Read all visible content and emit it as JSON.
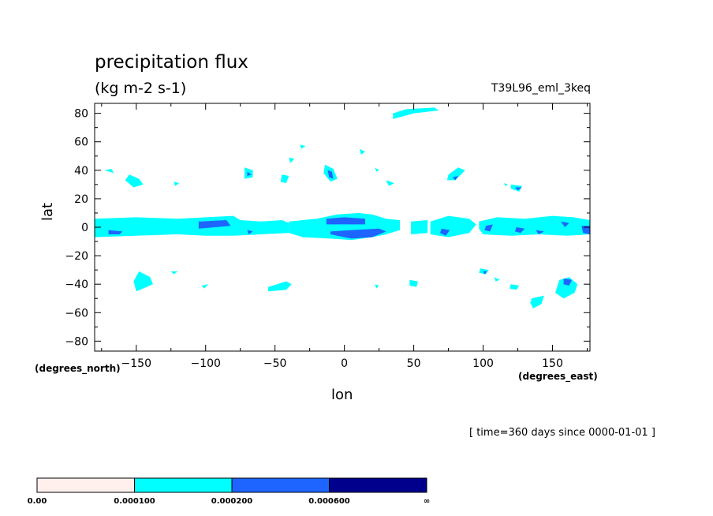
{
  "chart_data": {
    "type": "heatmap",
    "title": "precipitation flux",
    "units": "(kg m-2 s-1)",
    "experiment": "T39L96_eml_3keq",
    "xlabel": "lon",
    "ylabel": "lat",
    "x_units": "(degrees_north)",
    "y_units": "(degrees_east)",
    "time_label": "[ time=360 days since 0000-01-01 ]",
    "xlim": [
      -180,
      177
    ],
    "ylim": [
      -87,
      87
    ],
    "xticks": [
      -150,
      -100,
      -50,
      0,
      50,
      100,
      150
    ],
    "yticks": [
      80,
      60,
      40,
      20,
      0,
      -20,
      -40,
      -60,
      -80
    ],
    "colorbar": {
      "levels": [
        "0.00",
        "0.000100",
        "0.000200",
        "0.000600",
        "∞"
      ],
      "colors": [
        "#fff0ee",
        "#00ffff",
        "#1e64ff",
        "#00008c"
      ]
    },
    "regions": [
      {
        "level": 1,
        "points": [
          [
            -180,
            6
          ],
          [
            -150,
            7
          ],
          [
            -120,
            6
          ],
          [
            -100,
            7
          ],
          [
            -80,
            8
          ],
          [
            -75,
            5
          ],
          [
            -60,
            4
          ],
          [
            -45,
            5
          ],
          [
            -40,
            3
          ],
          [
            -40,
            -4
          ],
          [
            -60,
            -5
          ],
          [
            -80,
            -6
          ],
          [
            -100,
            -6
          ],
          [
            -120,
            -5
          ],
          [
            -150,
            -6
          ],
          [
            -180,
            -7
          ]
        ]
      },
      {
        "level": 1,
        "points": [
          [
            -40,
            4
          ],
          [
            -20,
            6
          ],
          [
            -5,
            9
          ],
          [
            10,
            10
          ],
          [
            20,
            9
          ],
          [
            30,
            6
          ],
          [
            40,
            5
          ],
          [
            40,
            -2
          ],
          [
            30,
            -5
          ],
          [
            20,
            -7
          ],
          [
            5,
            -9
          ],
          [
            -10,
            -8
          ],
          [
            -30,
            -7
          ],
          [
            -40,
            -4
          ]
        ]
      },
      {
        "level": 1,
        "points": [
          [
            48,
            4
          ],
          [
            60,
            5
          ],
          [
            60,
            -4
          ],
          [
            48,
            -5
          ]
        ]
      },
      {
        "level": 1,
        "points": [
          [
            62,
            4
          ],
          [
            75,
            8
          ],
          [
            90,
            6
          ],
          [
            95,
            2
          ],
          [
            90,
            -4
          ],
          [
            75,
            -7
          ],
          [
            62,
            -5
          ]
        ]
      },
      {
        "level": 1,
        "points": [
          [
            97,
            4
          ],
          [
            110,
            7
          ],
          [
            130,
            6
          ],
          [
            150,
            8
          ],
          [
            165,
            7
          ],
          [
            177,
            5
          ],
          [
            177,
            -5
          ],
          [
            160,
            -6
          ],
          [
            140,
            -5
          ],
          [
            120,
            -6
          ],
          [
            100,
            -5
          ],
          [
            97,
            -1
          ]
        ]
      },
      {
        "level": 1,
        "points": [
          [
            35,
            80
          ],
          [
            45,
            83
          ],
          [
            65,
            84
          ],
          [
            68,
            82
          ],
          [
            50,
            80
          ],
          [
            35,
            76
          ]
        ]
      },
      {
        "level": 1,
        "points": [
          [
            -173,
            40
          ],
          [
            -168,
            41
          ],
          [
            -166,
            38
          ]
        ]
      },
      {
        "level": 1,
        "points": [
          [
            -155,
            37
          ],
          [
            -148,
            34
          ],
          [
            -145,
            30
          ],
          [
            -152,
            28
          ],
          [
            -158,
            33
          ]
        ]
      },
      {
        "level": 1,
        "points": [
          [
            -123,
            32
          ],
          [
            -119,
            31
          ],
          [
            -122,
            29
          ]
        ]
      },
      {
        "level": 1,
        "points": [
          [
            -72,
            42
          ],
          [
            -66,
            40
          ],
          [
            -66,
            35
          ],
          [
            -72,
            34
          ]
        ]
      },
      {
        "level": 1,
        "points": [
          [
            -45,
            37
          ],
          [
            -40,
            36
          ],
          [
            -42,
            31
          ],
          [
            -46,
            32
          ]
        ]
      },
      {
        "level": 1,
        "points": [
          [
            -32,
            58
          ],
          [
            -28,
            57
          ],
          [
            -31,
            55
          ]
        ]
      },
      {
        "level": 1,
        "points": [
          [
            -40,
            49
          ],
          [
            -36,
            48
          ],
          [
            -39,
            45
          ]
        ]
      },
      {
        "level": 1,
        "points": [
          [
            -14,
            44
          ],
          [
            -8,
            41
          ],
          [
            -5,
            34
          ],
          [
            -10,
            32
          ],
          [
            -15,
            38
          ]
        ]
      },
      {
        "level": 1,
        "points": [
          [
            11,
            55
          ],
          [
            15,
            53
          ],
          [
            12,
            51
          ]
        ]
      },
      {
        "level": 1,
        "points": [
          [
            30,
            33
          ],
          [
            36,
            31
          ],
          [
            32,
            29
          ]
        ]
      },
      {
        "level": 1,
        "points": [
          [
            22,
            42
          ],
          [
            25,
            40
          ],
          [
            23,
            39
          ]
        ]
      },
      {
        "level": 1,
        "points": [
          [
            75,
            37
          ],
          [
            82,
            42
          ],
          [
            87,
            40
          ],
          [
            80,
            33
          ],
          [
            74,
            33
          ]
        ]
      },
      {
        "level": 1,
        "points": [
          [
            115,
            31
          ],
          [
            118,
            30
          ],
          [
            116,
            29
          ]
        ]
      },
      {
        "level": 1,
        "points": [
          [
            120,
            30
          ],
          [
            128,
            29
          ],
          [
            126,
            25
          ],
          [
            120,
            27
          ]
        ]
      },
      {
        "level": 1,
        "points": [
          [
            -148,
            -31
          ],
          [
            -140,
            -35
          ],
          [
            -138,
            -40
          ],
          [
            -145,
            -43
          ],
          [
            -150,
            -45
          ],
          [
            -152,
            -38
          ]
        ]
      },
      {
        "level": 1,
        "points": [
          [
            -125,
            -31
          ],
          [
            -120,
            -31
          ],
          [
            -123,
            -33
          ]
        ]
      },
      {
        "level": 1,
        "points": [
          [
            -103,
            -41
          ],
          [
            -98,
            -40
          ],
          [
            -101,
            -43
          ]
        ]
      },
      {
        "level": 1,
        "points": [
          [
            -55,
            -42
          ],
          [
            -42,
            -38
          ],
          [
            -38,
            -40
          ],
          [
            -42,
            -44
          ],
          [
            -55,
            -45
          ]
        ]
      },
      {
        "level": 1,
        "points": [
          [
            47,
            -37
          ],
          [
            53,
            -38
          ],
          [
            52,
            -42
          ],
          [
            47,
            -41
          ]
        ]
      },
      {
        "level": 1,
        "points": [
          [
            22,
            -40
          ],
          [
            25,
            -41
          ],
          [
            23,
            -43
          ]
        ]
      },
      {
        "level": 1,
        "points": [
          [
            98,
            -29
          ],
          [
            104,
            -30
          ],
          [
            102,
            -33
          ],
          [
            97,
            -32
          ]
        ]
      },
      {
        "level": 1,
        "points": [
          [
            108,
            -35
          ],
          [
            112,
            -37
          ],
          [
            109,
            -38
          ]
        ]
      },
      {
        "level": 1,
        "points": [
          [
            120,
            -40
          ],
          [
            126,
            -41
          ],
          [
            124,
            -44
          ],
          [
            119,
            -43
          ]
        ]
      },
      {
        "level": 1,
        "points": [
          [
            135,
            -50
          ],
          [
            144,
            -48
          ],
          [
            142,
            -54
          ],
          [
            136,
            -57
          ],
          [
            134,
            -53
          ]
        ]
      },
      {
        "level": 1,
        "points": [
          [
            155,
            -37
          ],
          [
            162,
            -35
          ],
          [
            168,
            -40
          ],
          [
            166,
            -46
          ],
          [
            158,
            -50
          ],
          [
            152,
            -46
          ]
        ]
      },
      {
        "level": 2,
        "points": [
          [
            -170,
            -2
          ],
          [
            -160,
            -3
          ],
          [
            -162,
            -5
          ],
          [
            -170,
            -5
          ]
        ]
      },
      {
        "level": 2,
        "points": [
          [
            -105,
            4
          ],
          [
            -85,
            5
          ],
          [
            -82,
            1
          ],
          -90,
          -3,
          [
            -105,
            -1
          ]
        ]
      },
      {
        "level": 2,
        "points": [
          [
            -13,
            6
          ],
          [
            0,
            7
          ],
          [
            15,
            6
          ],
          [
            15,
            2
          ],
          [
            0,
            2
          ],
          [
            -13,
            2
          ]
        ]
      },
      {
        "level": 2,
        "points": [
          [
            -10,
            -3
          ],
          [
            5,
            -2
          ],
          [
            25,
            -1
          ],
          [
            30,
            -3
          ],
          [
            20,
            -7
          ],
          [
            5,
            -8
          ],
          [
            -10,
            -5
          ]
        ]
      },
      {
        "level": 2,
        "points": [
          [
            -12,
            40
          ],
          [
            -9,
            39
          ],
          [
            -8,
            34
          ],
          [
            -11,
            35
          ]
        ]
      },
      {
        "level": 2,
        "points": [
          [
            -70,
            39
          ],
          [
            -67,
            37
          ],
          [
            -70,
            36
          ]
        ]
      },
      {
        "level": 2,
        "points": [
          [
            -70,
            -2
          ],
          [
            -66,
            -3
          ],
          [
            -69,
            -5
          ]
        ]
      },
      {
        "level": 2,
        "points": [
          [
            70,
            -1
          ],
          [
            76,
            -2
          ],
          [
            73,
            -6
          ],
          [
            69,
            -4
          ]
        ]
      },
      {
        "level": 2,
        "points": [
          [
            102,
            1
          ],
          [
            107,
            2
          ],
          [
            105,
            -3
          ],
          [
            101,
            -2
          ]
        ]
      },
      {
        "level": 2,
        "points": [
          [
            124,
            0
          ],
          [
            130,
            -1
          ],
          [
            127,
            -4
          ],
          [
            123,
            -3
          ]
        ]
      },
      {
        "level": 2,
        "points": [
          [
            138,
            -2
          ],
          [
            144,
            -3
          ],
          [
            140,
            -5
          ]
        ]
      },
      {
        "level": 2,
        "points": [
          [
            156,
            4
          ],
          [
            162,
            3
          ],
          [
            159,
            0
          ]
        ]
      },
      {
        "level": 2,
        "points": [
          [
            171,
            1
          ],
          [
            177,
            1
          ],
          [
            177,
            -5
          ],
          [
            172,
            -4
          ]
        ]
      },
      {
        "level": 2,
        "points": [
          [
            123,
            28
          ],
          [
            128,
            28
          ],
          [
            125,
            26
          ]
        ]
      },
      {
        "level": 2,
        "points": [
          [
            78,
            35
          ],
          [
            82,
            36
          ],
          [
            80,
            33
          ]
        ]
      },
      {
        "level": 2,
        "points": [
          [
            158,
            -36
          ],
          [
            164,
            -37
          ],
          [
            162,
            -41
          ],
          [
            158,
            -40
          ]
        ]
      },
      {
        "level": 2,
        "points": [
          [
            100,
            -31
          ],
          [
            103,
            -31
          ],
          [
            101,
            -33
          ]
        ]
      }
    ]
  }
}
